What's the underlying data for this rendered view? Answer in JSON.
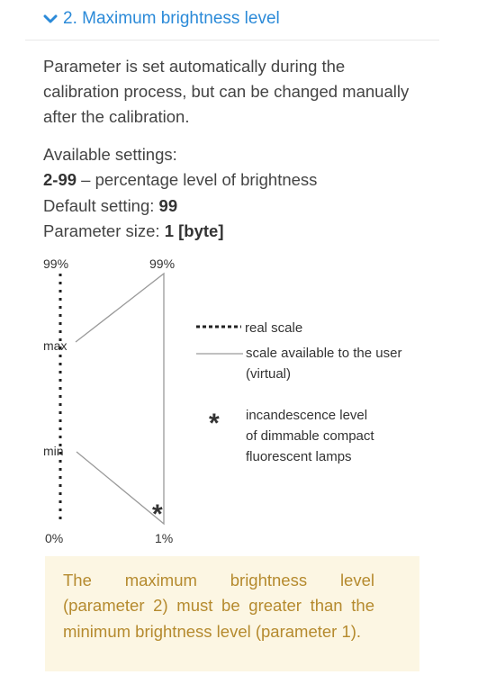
{
  "section": {
    "title": "2. Maximum brightness level",
    "icon": "chevron-down-icon",
    "accent_color": "#2b8ad8"
  },
  "description": "Parameter is set automatically during the calibration process, but can be changed manually after the calibration.",
  "settings": {
    "available_label": "Available settings:",
    "range_value": "2-99",
    "range_desc": " – percentage level of brightness",
    "default_label": "Default setting: ",
    "default_value": "99",
    "size_label": "Parameter size: ",
    "size_value": "1 [byte]"
  },
  "diagram": {
    "left_top": "99%",
    "right_top": "99%",
    "max_label": "max",
    "min_label": "min",
    "left_bottom": "0%",
    "right_bottom": "1%",
    "legend": {
      "real": "real scale",
      "virtual_1": "scale available to the user",
      "virtual_2": "(virtual)",
      "star_1": "incandescence level",
      "star_2": "of dimmable compact",
      "star_3": "fluorescent lamps"
    }
  },
  "note": {
    "text": "The maximum brightness level (parameter 2) must be greater than the minimum brightness level (parameter 1).",
    "background": "#fcf6e3",
    "text_color": "#b58a2e"
  }
}
